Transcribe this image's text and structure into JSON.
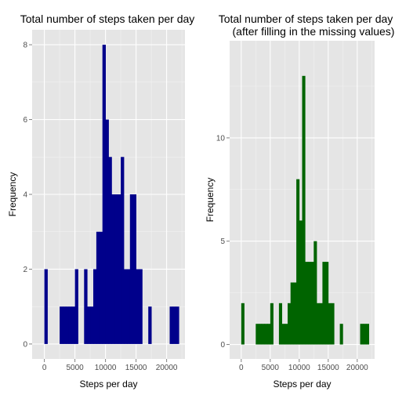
{
  "chart_data": [
    {
      "type": "bar",
      "title": "Total number of steps taken per day",
      "subtitle": "",
      "xlabel": "Steps per day",
      "ylabel": "Frequency",
      "xlim": [
        -2000,
        23000
      ],
      "ylim": [
        -0.4,
        8.4
      ],
      "xticks": [
        0,
        5000,
        10000,
        15000,
        20000
      ],
      "yticks": [
        0,
        2,
        4,
        6,
        8
      ],
      "bar_color": "#00008B",
      "panel_color": "#E5E5E5",
      "grid": true,
      "bins": [
        {
          "x0": 0,
          "x1": 500,
          "count": 2
        },
        {
          "x0": 2500,
          "x1": 3000,
          "count": 1
        },
        {
          "x0": 3000,
          "x1": 3500,
          "count": 1
        },
        {
          "x0": 3500,
          "x1": 4000,
          "count": 1
        },
        {
          "x0": 4000,
          "x1": 4500,
          "count": 1
        },
        {
          "x0": 4500,
          "x1": 5000,
          "count": 1
        },
        {
          "x0": 5000,
          "x1": 5500,
          "count": 2
        },
        {
          "x0": 6500,
          "x1": 7000,
          "count": 2
        },
        {
          "x0": 7000,
          "x1": 7500,
          "count": 1
        },
        {
          "x0": 7500,
          "x1": 8000,
          "count": 1
        },
        {
          "x0": 8000,
          "x1": 8500,
          "count": 2
        },
        {
          "x0": 8500,
          "x1": 9000,
          "count": 3
        },
        {
          "x0": 9000,
          "x1": 9500,
          "count": 3
        },
        {
          "x0": 9500,
          "x1": 10000,
          "count": 8
        },
        {
          "x0": 10000,
          "x1": 10500,
          "count": 6
        },
        {
          "x0": 10500,
          "x1": 11000,
          "count": 5
        },
        {
          "x0": 11000,
          "x1": 11500,
          "count": 4
        },
        {
          "x0": 11500,
          "x1": 12000,
          "count": 4
        },
        {
          "x0": 12000,
          "x1": 12500,
          "count": 4
        },
        {
          "x0": 12500,
          "x1": 13000,
          "count": 5
        },
        {
          "x0": 13000,
          "x1": 13500,
          "count": 2
        },
        {
          "x0": 13500,
          "x1": 14000,
          "count": 2
        },
        {
          "x0": 14000,
          "x1": 14500,
          "count": 4
        },
        {
          "x0": 14500,
          "x1": 15000,
          "count": 4
        },
        {
          "x0": 15000,
          "x1": 15500,
          "count": 2
        },
        {
          "x0": 15500,
          "x1": 16000,
          "count": 2
        },
        {
          "x0": 17000,
          "x1": 17500,
          "count": 1
        },
        {
          "x0": 20500,
          "x1": 21000,
          "count": 1
        },
        {
          "x0": 21000,
          "x1": 21500,
          "count": 1
        },
        {
          "x0": 21500,
          "x1": 22000,
          "count": 1
        }
      ]
    },
    {
      "type": "bar",
      "title": "Total number of steps taken per day",
      "subtitle": "(after filling in the missing values)",
      "xlabel": "Steps per day",
      "ylabel": "Frequency",
      "xlim": [
        -2000,
        23000
      ],
      "ylim": [
        -0.7,
        14.7
      ],
      "xticks": [
        0,
        5000,
        10000,
        15000,
        20000
      ],
      "yticks": [
        0,
        5,
        10
      ],
      "bar_color": "#006400",
      "panel_color": "#E5E5E5",
      "grid": true,
      "bins": [
        {
          "x0": 0,
          "x1": 500,
          "count": 2
        },
        {
          "x0": 2500,
          "x1": 3000,
          "count": 1
        },
        {
          "x0": 3000,
          "x1": 3500,
          "count": 1
        },
        {
          "x0": 3500,
          "x1": 4000,
          "count": 1
        },
        {
          "x0": 4000,
          "x1": 4500,
          "count": 1
        },
        {
          "x0": 4500,
          "x1": 5000,
          "count": 1
        },
        {
          "x0": 5000,
          "x1": 5500,
          "count": 2
        },
        {
          "x0": 6500,
          "x1": 7000,
          "count": 2
        },
        {
          "x0": 7000,
          "x1": 7500,
          "count": 1
        },
        {
          "x0": 7500,
          "x1": 8000,
          "count": 1
        },
        {
          "x0": 8000,
          "x1": 8500,
          "count": 2
        },
        {
          "x0": 8500,
          "x1": 9000,
          "count": 3
        },
        {
          "x0": 9000,
          "x1": 9500,
          "count": 3
        },
        {
          "x0": 9500,
          "x1": 10000,
          "count": 8
        },
        {
          "x0": 10000,
          "x1": 10500,
          "count": 6
        },
        {
          "x0": 10500,
          "x1": 11000,
          "count": 13
        },
        {
          "x0": 11000,
          "x1": 11500,
          "count": 4
        },
        {
          "x0": 11500,
          "x1": 12000,
          "count": 4
        },
        {
          "x0": 12000,
          "x1": 12500,
          "count": 4
        },
        {
          "x0": 12500,
          "x1": 13000,
          "count": 5
        },
        {
          "x0": 13000,
          "x1": 13500,
          "count": 2
        },
        {
          "x0": 13500,
          "x1": 14000,
          "count": 2
        },
        {
          "x0": 14000,
          "x1": 14500,
          "count": 4
        },
        {
          "x0": 14500,
          "x1": 15000,
          "count": 4
        },
        {
          "x0": 15000,
          "x1": 15500,
          "count": 2
        },
        {
          "x0": 15500,
          "x1": 16000,
          "count": 2
        },
        {
          "x0": 17000,
          "x1": 17500,
          "count": 1
        },
        {
          "x0": 20500,
          "x1": 21000,
          "count": 1
        },
        {
          "x0": 21000,
          "x1": 21500,
          "count": 1
        },
        {
          "x0": 21500,
          "x1": 22000,
          "count": 1
        }
      ]
    }
  ]
}
